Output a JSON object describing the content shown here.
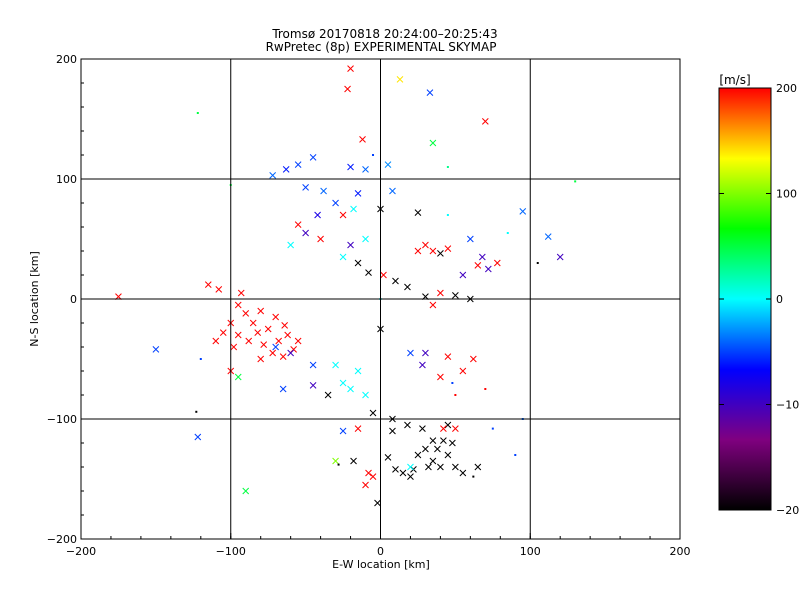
{
  "title": "Tromsø 20170818 20:24:00–20:25:43",
  "subtitle": "RwPretec (8p) EXPERIMENTAL SKYMAP",
  "chart_data": {
    "type": "scatter",
    "title": "Tromsø 20170818 20:24:00–20:25:43",
    "subtitle": "RwPretec (8p) EXPERIMENTAL SKYMAP",
    "xlabel": "E-W location [km]",
    "ylabel": "N-S location [km]",
    "xlim": [
      -200,
      200
    ],
    "ylim": [
      -200,
      200
    ],
    "xticks": [
      -200,
      -100,
      0,
      100,
      200
    ],
    "yticks": [
      -200,
      -100,
      0,
      100,
      200
    ],
    "grid": true,
    "colorbar": {
      "label": "[m/s]",
      "range": [
        -200,
        200
      ],
      "ticks": [
        200,
        100,
        0,
        -100,
        -200
      ],
      "colormap": [
        "#000000",
        "#800080",
        "#0000ff",
        "#00ffff",
        "#00ff00",
        "#ffff00",
        "#ff0000"
      ]
    },
    "markers": [
      "x",
      "dot"
    ],
    "points": [
      [
        13,
        183,
        140,
        "x"
      ],
      [
        -20,
        192,
        200,
        "x"
      ],
      [
        -22,
        175,
        200,
        "x"
      ],
      [
        33,
        172,
        -50,
        "x"
      ],
      [
        70,
        148,
        200,
        "x"
      ],
      [
        -122,
        155,
        50,
        "dot"
      ],
      [
        35,
        130,
        50,
        "x"
      ],
      [
        -12,
        133,
        200,
        "x"
      ],
      [
        -45,
        118,
        -50,
        "x"
      ],
      [
        -55,
        112,
        -50,
        "x"
      ],
      [
        -63,
        108,
        -60,
        "x"
      ],
      [
        -72,
        103,
        -40,
        "x"
      ],
      [
        -20,
        110,
        -60,
        "x"
      ],
      [
        -10,
        108,
        -40,
        "x"
      ],
      [
        5,
        112,
        -30,
        "x"
      ],
      [
        -5,
        120,
        -50,
        "dot"
      ],
      [
        45,
        110,
        30,
        "dot"
      ],
      [
        -100,
        95,
        50,
        "dot"
      ],
      [
        130,
        98,
        50,
        "dot"
      ],
      [
        -50,
        93,
        -50,
        "x"
      ],
      [
        -38,
        90,
        -40,
        "x"
      ],
      [
        -15,
        88,
        -60,
        "x"
      ],
      [
        8,
        90,
        -40,
        "x"
      ],
      [
        -30,
        80,
        -50,
        "x"
      ],
      [
        -42,
        70,
        -80,
        "x"
      ],
      [
        -25,
        70,
        200,
        "x"
      ],
      [
        -18,
        75,
        0,
        "x"
      ],
      [
        0,
        75,
        -200,
        "x"
      ],
      [
        25,
        72,
        -200,
        "x"
      ],
      [
        45,
        70,
        0,
        "dot"
      ],
      [
        95,
        73,
        -40,
        "x"
      ],
      [
        112,
        52,
        -40,
        "x"
      ],
      [
        120,
        35,
        -100,
        "x"
      ],
      [
        105,
        30,
        -200,
        "dot"
      ],
      [
        85,
        55,
        0,
        "dot"
      ],
      [
        60,
        50,
        -50,
        "x"
      ],
      [
        -55,
        62,
        200,
        "x"
      ],
      [
        -50,
        55,
        -100,
        "x"
      ],
      [
        -60,
        45,
        0,
        "x"
      ],
      [
        -40,
        50,
        200,
        "x"
      ],
      [
        -20,
        45,
        -100,
        "x"
      ],
      [
        -10,
        50,
        0,
        "x"
      ],
      [
        -25,
        35,
        0,
        "x"
      ],
      [
        -15,
        30,
        -200,
        "x"
      ],
      [
        -8,
        22,
        -200,
        "x"
      ],
      [
        2,
        20,
        200,
        "x"
      ],
      [
        10,
        15,
        -200,
        "x"
      ],
      [
        18,
        10,
        -200,
        "x"
      ],
      [
        25,
        40,
        200,
        "x"
      ],
      [
        30,
        45,
        200,
        "x"
      ],
      [
        35,
        40,
        200,
        "x"
      ],
      [
        40,
        38,
        -200,
        "x"
      ],
      [
        45,
        42,
        200,
        "x"
      ],
      [
        55,
        20,
        -100,
        "x"
      ],
      [
        65,
        28,
        200,
        "x"
      ],
      [
        68,
        35,
        -100,
        "x"
      ],
      [
        72,
        25,
        -100,
        "x"
      ],
      [
        78,
        30,
        200,
        "x"
      ],
      [
        40,
        5,
        200,
        "x"
      ],
      [
        50,
        3,
        -200,
        "x"
      ],
      [
        60,
        0,
        -200,
        "x"
      ],
      [
        35,
        -5,
        200,
        "x"
      ],
      [
        30,
        2,
        -200,
        "x"
      ],
      [
        -175,
        2,
        200,
        "x"
      ],
      [
        -115,
        12,
        200,
        "x"
      ],
      [
        -108,
        8,
        200,
        "x"
      ],
      [
        -93,
        5,
        200,
        "x"
      ],
      [
        -95,
        -5,
        200,
        "x"
      ],
      [
        -90,
        -12,
        200,
        "x"
      ],
      [
        -100,
        -20,
        200,
        "x"
      ],
      [
        -95,
        -30,
        200,
        "x"
      ],
      [
        -88,
        -35,
        200,
        "x"
      ],
      [
        -82,
        -28,
        200,
        "x"
      ],
      [
        -78,
        -38,
        200,
        "x"
      ],
      [
        -72,
        -45,
        200,
        "x"
      ],
      [
        -68,
        -35,
        200,
        "x"
      ],
      [
        -62,
        -30,
        200,
        "x"
      ],
      [
        -58,
        -42,
        200,
        "x"
      ],
      [
        -65,
        -48,
        200,
        "x"
      ],
      [
        -75,
        -25,
        200,
        "x"
      ],
      [
        -85,
        -20,
        200,
        "x"
      ],
      [
        -105,
        -28,
        200,
        "x"
      ],
      [
        -110,
        -35,
        200,
        "x"
      ],
      [
        -98,
        -40,
        200,
        "x"
      ],
      [
        -80,
        -10,
        200,
        "x"
      ],
      [
        -70,
        -15,
        200,
        "x"
      ],
      [
        -64,
        -22,
        200,
        "x"
      ],
      [
        -150,
        -42,
        -50,
        "x"
      ],
      [
        -120,
        -50,
        -50,
        "dot"
      ],
      [
        -95,
        -65,
        50,
        "x"
      ],
      [
        -100,
        -60,
        200,
        "x"
      ],
      [
        -65,
        -75,
        -50,
        "x"
      ],
      [
        -45,
        -72,
        -100,
        "x"
      ],
      [
        -35,
        -80,
        -200,
        "x"
      ],
      [
        -25,
        -70,
        0,
        "x"
      ],
      [
        -15,
        -60,
        0,
        "x"
      ],
      [
        -20,
        -75,
        0,
        "x"
      ],
      [
        -10,
        -80,
        0,
        "x"
      ],
      [
        -30,
        -55,
        0,
        "x"
      ],
      [
        0,
        -25,
        -200,
        "x"
      ],
      [
        20,
        -45,
        -50,
        "x"
      ],
      [
        28,
        -55,
        -100,
        "x"
      ],
      [
        40,
        -65,
        200,
        "x"
      ],
      [
        45,
        -48,
        200,
        "x"
      ],
      [
        62,
        -50,
        200,
        "x"
      ],
      [
        55,
        -60,
        200,
        "x"
      ],
      [
        48,
        -70,
        -50,
        "dot"
      ],
      [
        50,
        -80,
        200,
        "dot"
      ],
      [
        70,
        -75,
        200,
        "dot"
      ],
      [
        30,
        -45,
        -100,
        "x"
      ],
      [
        -60,
        -45,
        -100,
        "x"
      ],
      [
        -70,
        -40,
        -50,
        "x"
      ],
      [
        -80,
        -50,
        200,
        "x"
      ],
      [
        -55,
        -35,
        200,
        "x"
      ],
      [
        -45,
        -55,
        -50,
        "x"
      ],
      [
        -123,
        -94,
        -200,
        "dot"
      ],
      [
        -122,
        -115,
        -50,
        "x"
      ],
      [
        -90,
        -160,
        50,
        "x"
      ],
      [
        -15,
        -108,
        200,
        "x"
      ],
      [
        -25,
        -110,
        -50,
        "x"
      ],
      [
        -30,
        -135,
        100,
        "x"
      ],
      [
        -28,
        -138,
        -200,
        "dot"
      ],
      [
        -18,
        -135,
        -200,
        "x"
      ],
      [
        -5,
        -148,
        200,
        "x"
      ],
      [
        -2,
        -170,
        -200,
        "x"
      ],
      [
        5,
        -132,
        -200,
        "x"
      ],
      [
        8,
        -110,
        -200,
        "x"
      ],
      [
        18,
        -105,
        -200,
        "x"
      ],
      [
        28,
        -108,
        -200,
        "x"
      ],
      [
        35,
        -118,
        -200,
        "x"
      ],
      [
        38,
        -125,
        -200,
        "x"
      ],
      [
        42,
        -118,
        -200,
        "x"
      ],
      [
        45,
        -130,
        -200,
        "x"
      ],
      [
        48,
        -120,
        -200,
        "x"
      ],
      [
        30,
        -125,
        -200,
        "x"
      ],
      [
        25,
        -130,
        -200,
        "x"
      ],
      [
        35,
        -135,
        -200,
        "x"
      ],
      [
        40,
        -140,
        -200,
        "x"
      ],
      [
        32,
        -140,
        -200,
        "x"
      ],
      [
        50,
        -108,
        200,
        "x"
      ],
      [
        45,
        -105,
        -200,
        "x"
      ],
      [
        42,
        -108,
        200,
        "x"
      ],
      [
        22,
        -142,
        -200,
        "x"
      ],
      [
        20,
        -148,
        -200,
        "x"
      ],
      [
        15,
        -145,
        -200,
        "x"
      ],
      [
        20,
        -140,
        0,
        "x"
      ],
      [
        10,
        -142,
        -200,
        "x"
      ],
      [
        8,
        -100,
        -200,
        "x"
      ],
      [
        -5,
        -95,
        -200,
        "x"
      ],
      [
        50,
        -140,
        -200,
        "x"
      ],
      [
        62,
        -148,
        -200,
        "dot"
      ],
      [
        55,
        -145,
        -200,
        "x"
      ],
      [
        65,
        -140,
        -200,
        "x"
      ],
      [
        75,
        -108,
        -50,
        "dot"
      ],
      [
        95,
        -100,
        -40,
        "dot"
      ],
      [
        90,
        -130,
        -50,
        "dot"
      ],
      [
        -10,
        -155,
        200,
        "x"
      ],
      [
        -8,
        -145,
        200,
        "x"
      ],
      [
        0,
        0,
        0,
        "dot"
      ]
    ]
  }
}
